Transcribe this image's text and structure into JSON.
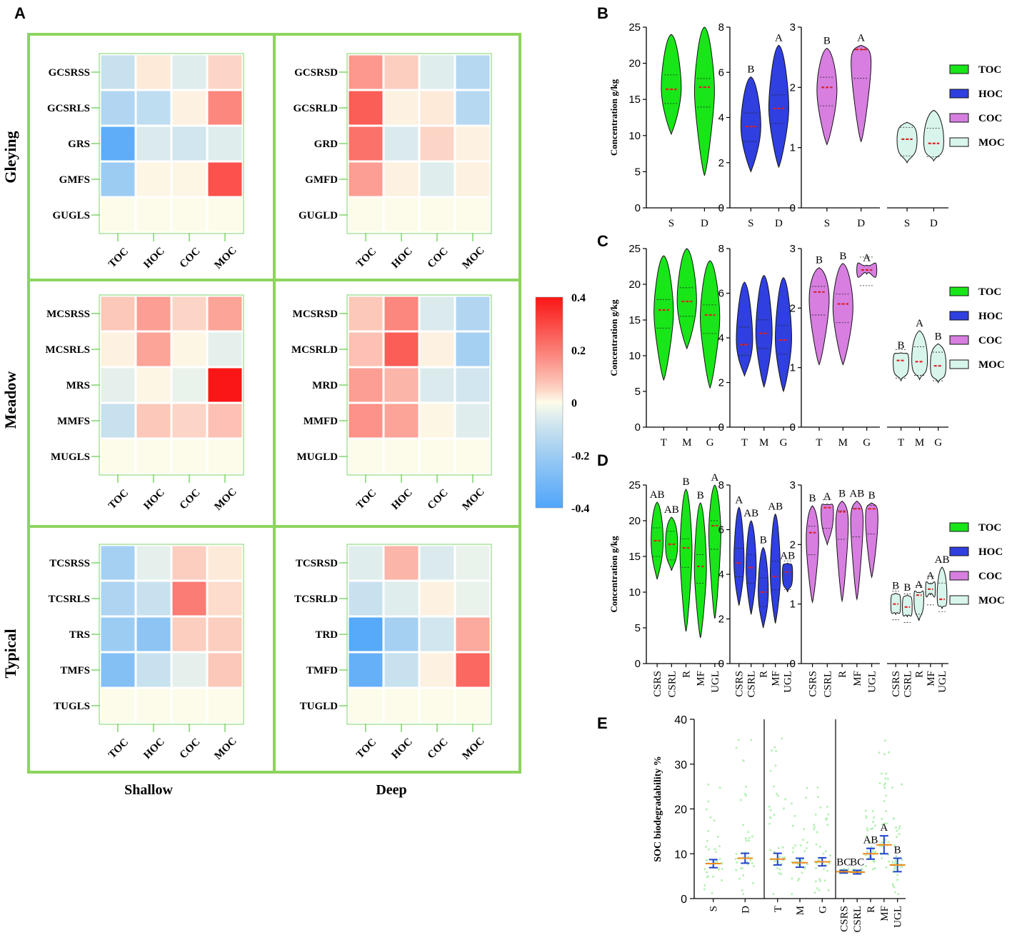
{
  "panel_labels": {
    "A": "A",
    "B": "B",
    "C": "C",
    "D": "D",
    "E": "E"
  },
  "colors": {
    "frame": "#8cd45c",
    "toc": "#18e618",
    "hoc": "#2f3fe0",
    "coc": "#d77ee0",
    "moc": "#d8f5ec",
    "mean": "#e02020",
    "dot": "#b6f0b6"
  },
  "chart_data": [
    {
      "type": "heatmap",
      "title": "A",
      "columns": [
        "TOC",
        "HOC",
        "COC",
        "MOC"
      ],
      "depth_labels": [
        "Shallow",
        "Deep"
      ],
      "group_labels": [
        "Gleying",
        "Meadow",
        "Typical"
      ],
      "colorbar": {
        "min": -0.4,
        "max": 0.4,
        "ticks": [
          "0.4",
          "0.2",
          "0",
          "-0.2",
          "-0.4"
        ],
        "tick_values": [
          0.4,
          0.2,
          0,
          -0.2,
          -0.4
        ]
      },
      "blocks": [
        {
          "rows": [
            "GCSRSS",
            "GCSRLS",
            "GRS",
            "GMFS",
            "GUGLS"
          ],
          "values": [
            [
              -0.1,
              0.02,
              -0.05,
              0.05
            ],
            [
              -0.15,
              -0.12,
              0.01,
              0.18
            ],
            [
              -0.36,
              -0.06,
              -0.08,
              -0.05
            ],
            [
              -0.2,
              0.005,
              0.005,
              0.28
            ],
            [
              0,
              0,
              0,
              0
            ]
          ]
        },
        {
          "rows": [
            "GCSRSD",
            "GCSRLD",
            "GRD",
            "GMFD",
            "GUGLD"
          ],
          "values": [
            [
              0.15,
              0.06,
              -0.05,
              -0.14
            ],
            [
              0.26,
              0.01,
              0.02,
              -0.14
            ],
            [
              0.22,
              -0.06,
              0.05,
              0.01
            ],
            [
              0.14,
              0.01,
              -0.05,
              0.01
            ],
            [
              0,
              0,
              0,
              0
            ]
          ]
        },
        {
          "rows": [
            "MCSRSS",
            "MCSRLS",
            "MRS",
            "MMFS",
            "MUGLS"
          ],
          "values": [
            [
              0.07,
              0.14,
              0.05,
              0.13
            ],
            [
              0.01,
              0.13,
              0.005,
              -0.04
            ],
            [
              -0.04,
              0.005,
              -0.03,
              0.4
            ],
            [
              -0.1,
              0.07,
              0.05,
              0.08
            ],
            [
              0,
              0,
              0,
              0
            ]
          ]
        },
        {
          "rows": [
            "MCSRSD",
            "MCSRLD",
            "MRD",
            "MMFD",
            "MUGLD"
          ],
          "values": [
            [
              0.07,
              0.18,
              -0.06,
              -0.15
            ],
            [
              0.08,
              0.26,
              0.01,
              -0.18
            ],
            [
              0.14,
              0.1,
              -0.06,
              -0.08
            ],
            [
              0.16,
              0.13,
              0.005,
              -0.05
            ],
            [
              0,
              0,
              0,
              0
            ]
          ]
        },
        {
          "rows": [
            "TCSRSS",
            "TCSRLS",
            "TRS",
            "TMFS",
            "TUGLS"
          ],
          "values": [
            [
              -0.18,
              -0.04,
              0.06,
              0.02
            ],
            [
              -0.16,
              -0.1,
              0.2,
              0.04
            ],
            [
              -0.2,
              -0.24,
              0.06,
              0.06
            ],
            [
              -0.26,
              -0.1,
              -0.04,
              0.07
            ],
            [
              0,
              0,
              0,
              0
            ]
          ]
        },
        {
          "rows": [
            "TCSRSD",
            "TCSRLD",
            "TRD",
            "TMFD",
            "TUGLD"
          ],
          "values": [
            [
              -0.05,
              0.1,
              -0.06,
              -0.03
            ],
            [
              -0.1,
              -0.05,
              0.01,
              -0.03
            ],
            [
              -0.38,
              -0.18,
              -0.08,
              0.12
            ],
            [
              -0.34,
              -0.1,
              0.01,
              0.24
            ],
            [
              0,
              0,
              0,
              0
            ]
          ]
        }
      ]
    },
    {
      "type": "violin",
      "title": "B",
      "ylabel": "Concentration g/kg",
      "legend": [
        "TOC",
        "HOC",
        "COC",
        "MOC"
      ],
      "subplots": [
        {
          "series": "TOC",
          "categories": [
            "S",
            "D"
          ],
          "ylim": [
            0,
            25
          ],
          "yticks": [
            "0",
            "5",
            "10",
            "15",
            "20",
            "25"
          ],
          "min": [
            10.2,
            4.5
          ],
          "max": [
            24,
            25
          ],
          "mean": [
            16.4,
            16.7
          ],
          "letters": [
            "",
            ""
          ]
        },
        {
          "series": "HOC",
          "categories": [
            "S",
            "D"
          ],
          "ylim": [
            0,
            8
          ],
          "yticks": [
            "0",
            "2",
            "4",
            "6",
            "8"
          ],
          "min": [
            1.6,
            1.8
          ],
          "max": [
            5.8,
            7.2
          ],
          "mean": [
            3.6,
            4.4
          ],
          "letters": [
            "B",
            "A"
          ]
        },
        {
          "series": "COC",
          "categories": [
            "S",
            "D"
          ],
          "ylim": [
            0,
            3
          ],
          "yticks": [
            "0",
            "1",
            "2",
            "3"
          ],
          "min": [
            1.05,
            1.1
          ],
          "max": [
            2.65,
            2.7
          ],
          "mean": [
            2.0,
            2.63
          ],
          "letters": [
            "B",
            "A"
          ]
        },
        {
          "series": "MOC",
          "categories": [
            "S",
            "D"
          ],
          "ylim": [
            0,
            3
          ],
          "min": [
            0.75,
            0.78
          ],
          "max": [
            1.42,
            1.62
          ],
          "mean": [
            1.14,
            1.07
          ],
          "letters": [
            "",
            ""
          ]
        }
      ]
    },
    {
      "type": "violin",
      "title": "C",
      "ylabel": "Concentration g/kg",
      "legend": [
        "TOC",
        "HOC",
        "COC",
        "MOC"
      ],
      "subplots": [
        {
          "series": "TOC",
          "categories": [
            "T",
            "M",
            "G"
          ],
          "ylim": [
            0,
            25
          ],
          "yticks": [
            "0",
            "5",
            "10",
            "15",
            "20",
            "25"
          ],
          "min": [
            6.6,
            11,
            5.5
          ],
          "max": [
            24,
            25,
            23.3
          ],
          "mean": [
            16.4,
            17.6,
            15.7
          ],
          "letters": [
            "",
            "",
            ""
          ]
        },
        {
          "series": "HOC",
          "categories": [
            "T",
            "M",
            "G"
          ],
          "ylim": [
            0,
            8
          ],
          "yticks": [
            "0",
            "2",
            "4",
            "6",
            "8"
          ],
          "min": [
            2.3,
            1.8,
            1.6
          ],
          "max": [
            6.5,
            6.8,
            6.7
          ],
          "mean": [
            3.7,
            4.2,
            3.9
          ],
          "letters": [
            "",
            "",
            ""
          ]
        },
        {
          "series": "COC",
          "categories": [
            "T",
            "M",
            "G"
          ],
          "ylim": [
            0,
            3
          ],
          "yticks": [
            "0",
            "1",
            "2",
            "3"
          ],
          "min": [
            1.05,
            1.05,
            2.57
          ],
          "max": [
            2.68,
            2.75,
            2.72
          ],
          "mean": [
            2.27,
            2.07,
            2.64
          ],
          "letters": [
            "B",
            "B",
            "A"
          ]
        },
        {
          "series": "MOC",
          "categories": [
            "T",
            "M",
            "G"
          ],
          "ylim": [
            0,
            3
          ],
          "min": [
            0.78,
            0.8,
            0.75
          ],
          "max": [
            1.25,
            1.62,
            1.4
          ],
          "mean": [
            1.12,
            1.1,
            1.03
          ],
          "letters": [
            "B",
            "A",
            "B"
          ]
        }
      ]
    },
    {
      "type": "violin",
      "title": "D",
      "ylabel": "Concentration g/kg",
      "legend": [
        "TOC",
        "HOC",
        "COC",
        "MOC"
      ],
      "subplots": [
        {
          "series": "TOC",
          "categories": [
            "CSRS",
            "CSRL",
            "R",
            "MF",
            "UGL"
          ],
          "ylim": [
            0,
            25
          ],
          "yticks": [
            "0",
            "5",
            "10",
            "15",
            "20",
            "25"
          ],
          "min": [
            11.8,
            13,
            4.5,
            3.6,
            6.3
          ],
          "max": [
            22.6,
            20.5,
            24.4,
            22.5,
            25
          ],
          "mean": [
            17.2,
            16.7,
            16.2,
            13.6,
            19.3
          ],
          "letters": [
            "AB",
            "AB",
            "B",
            "B",
            "A"
          ]
        },
        {
          "series": "HOC",
          "categories": [
            "CSRS",
            "CSRL",
            "R",
            "MF",
            "UGL"
          ],
          "ylim": [
            0,
            8
          ],
          "yticks": [
            "0",
            "2",
            "4",
            "6",
            "8"
          ],
          "min": [
            2.6,
            2.2,
            1.6,
            1.8,
            3.2
          ],
          "max": [
            7.0,
            6.4,
            5.2,
            6.7,
            4.5
          ],
          "mean": [
            4.5,
            4.3,
            3.2,
            3.9,
            4.1
          ],
          "letters": [
            "A",
            "AB",
            "B",
            "AB",
            "AB"
          ]
        },
        {
          "series": "COC",
          "categories": [
            "CSRS",
            "CSRL",
            "R",
            "MF",
            "UGL"
          ],
          "ylim": [
            0,
            3
          ],
          "yticks": [
            "0",
            "1",
            "2",
            "3"
          ],
          "min": [
            1.03,
            2.0,
            1.05,
            1.08,
            1.45
          ],
          "max": [
            2.65,
            2.68,
            2.73,
            2.73,
            2.7
          ],
          "mean": [
            2.2,
            2.62,
            2.55,
            2.6,
            2.6
          ],
          "letters": [
            "B",
            "A",
            "B",
            "AB",
            "B"
          ]
        },
        {
          "series": "MOC",
          "categories": [
            "CSRS",
            "CSRL",
            "R",
            "MF",
            "UGL"
          ],
          "ylim": [
            0,
            3
          ],
          "min": [
            0.82,
            0.78,
            0.72,
            1.15,
            0.92
          ],
          "max": [
            1.18,
            1.15,
            1.2,
            1.35,
            1.62
          ],
          "mean": [
            1.0,
            0.95,
            1.15,
            1.25,
            1.08
          ],
          "letters": [
            "B",
            "B",
            "A",
            "A",
            "AB"
          ]
        }
      ]
    },
    {
      "type": "scatter",
      "title": "E",
      "ylabel": "SOC biodegradability %",
      "ylim": [
        0,
        40
      ],
      "yticks": [
        "0",
        "10",
        "20",
        "30",
        "40"
      ],
      "groups": [
        {
          "categories": [
            "S",
            "D"
          ],
          "mean": [
            7.8,
            9.0
          ],
          "err": [
            0.9,
            1.1
          ],
          "letters": [
            "",
            ""
          ],
          "max": [
            26,
            36
          ]
        },
        {
          "categories": [
            "T",
            "M",
            "G"
          ],
          "mean": [
            8.8,
            8.0,
            8.2
          ],
          "err": [
            1.3,
            1.0,
            0.9
          ],
          "letters": [
            "",
            "",
            ""
          ],
          "max": [
            36,
            26,
            26
          ]
        },
        {
          "categories": [
            "CSRS",
            "CSRL",
            "R",
            "MF",
            "UGL"
          ],
          "mean": [
            6.0,
            5.9,
            10.0,
            12.0,
            7.5
          ],
          "err": [
            0.3,
            0.4,
            1.2,
            2.0,
            1.5
          ],
          "letters": [
            "BC",
            "BC",
            "AB",
            "A",
            "B"
          ],
          "max": [
            6.8,
            6.6,
            20,
            36,
            26
          ]
        }
      ]
    }
  ]
}
